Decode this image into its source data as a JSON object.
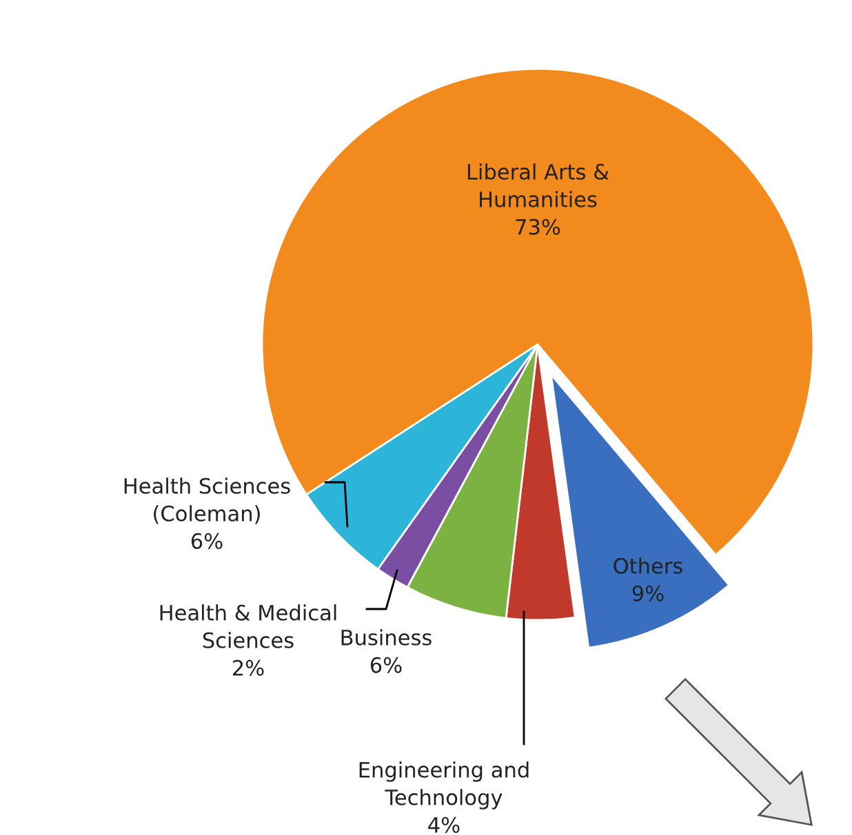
{
  "chart_data": {
    "type": "pie",
    "categories": [
      "Liberal Arts &\nHumanities",
      "Others",
      "Engineering and\nTechnology",
      "Business",
      "Health & Medical\nSciences",
      "Health Sciences\n(Coleman)"
    ],
    "values": [
      73,
      9,
      4,
      6,
      2,
      6
    ],
    "value_labels": [
      "73%",
      "9%",
      "4%",
      "6%",
      "2%",
      "6%"
    ],
    "colors": [
      "#f28a1e",
      "#3a6fc0",
      "#c0392b",
      "#7bb241",
      "#7a4fa3",
      "#2cb5d8"
    ]
  }
}
